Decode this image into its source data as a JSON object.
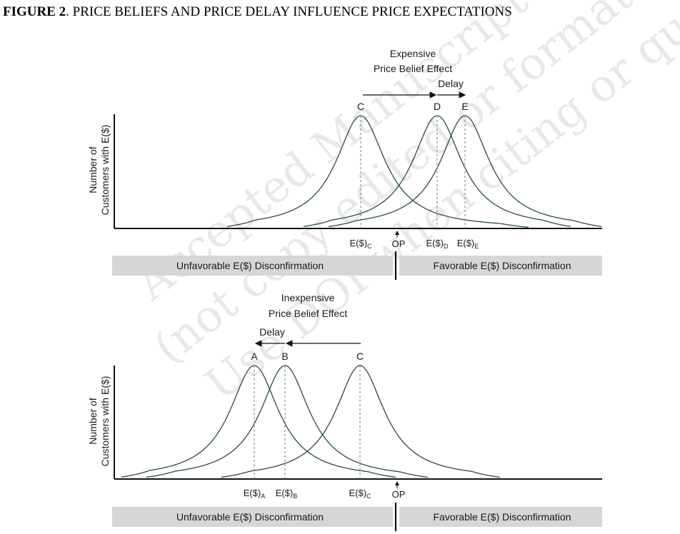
{
  "figure": {
    "title_bold": "FIGURE 2",
    "title_rest": ". PRICE BELIEFS AND PRICE DELAY INFLUENCE PRICE EXPECTATIONS"
  },
  "watermark": {
    "line1": "Accepted Manuscript form",
    "line2": "(not copy edited or formatted)",
    "line3": "Use DOI when citing or quoting"
  },
  "panel_top": {
    "y_label_line1": "Number of",
    "y_label_line2": "Customers with E($)",
    "effect_line1": "Expensive",
    "effect_line2": "Price Belief Effect",
    "delay_label": "Delay",
    "curves": [
      {
        "label": "C",
        "x_label": "E($)",
        "subscript": "C"
      },
      {
        "label": "D",
        "x_label": "E($)",
        "subscript": "D"
      },
      {
        "label": "E",
        "x_label": "E($)",
        "subscript": "E"
      }
    ],
    "op_label": "OP",
    "left_band": "Unfavorable E($) Disconfirmation",
    "right_band": "Favorable E($) Disconfirmation"
  },
  "panel_bottom": {
    "y_label_line1": "Number of",
    "y_label_line2": "Customers with E($)",
    "effect_line1": "Inexpensive",
    "effect_line2": "Price Belief Effect",
    "delay_label": "Delay",
    "curves": [
      {
        "label": "A",
        "x_label": "E($)",
        "subscript": "A"
      },
      {
        "label": "B",
        "x_label": "E($)",
        "subscript": "B"
      },
      {
        "label": "C",
        "x_label": "E($)",
        "subscript": "C"
      }
    ],
    "op_label": "OP",
    "left_band": "Unfavorable E($) Disconfirmation",
    "right_band": "Favorable E($) Disconfirmation"
  },
  "colors": {
    "curve": "#2b4a4a",
    "axis": "#111111",
    "band": "#d6d6d6"
  }
}
